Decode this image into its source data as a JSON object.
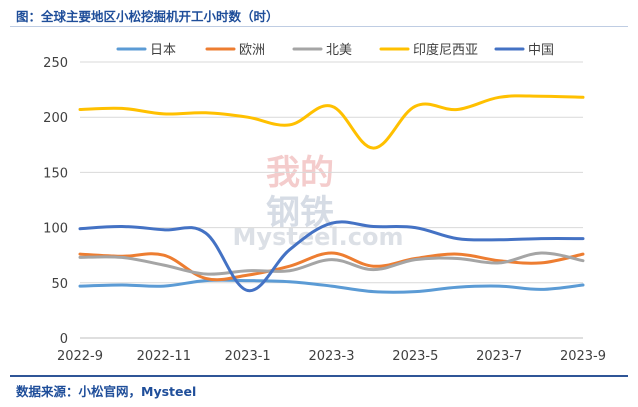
{
  "header": {
    "title": "图：全球主要地区小松挖掘机开工小时数（时）"
  },
  "footer": {
    "source": "数据来源：小松官网，Mysteel"
  },
  "watermark": {
    "line1": "我的",
    "line2": "钢铁",
    "brand": "Mysteel.com"
  },
  "chart_data": {
    "type": "line",
    "title": "图：全球主要地区小松挖掘机开工小时数（时）",
    "xlabel": "",
    "ylabel": "",
    "ylim": [
      0,
      250
    ],
    "yticks": [
      0,
      50,
      100,
      150,
      200,
      250
    ],
    "x": [
      "2022-9",
      "2022-10",
      "2022-11",
      "2022-12",
      "2023-1",
      "2023-2",
      "2023-3",
      "2023-4",
      "2023-5",
      "2023-6",
      "2023-7",
      "2023-8",
      "2023-9"
    ],
    "xtick_labels": [
      "2022-9",
      "2022-11",
      "2023-1",
      "2023-3",
      "2023-5",
      "2023-7",
      "2023-9"
    ],
    "grid": "horizontal",
    "legend_position": "top",
    "series": [
      {
        "name": "日本",
        "color": "#5b9bd5",
        "values": [
          47,
          48,
          47,
          52,
          52,
          51,
          47,
          42,
          42,
          46,
          47,
          44,
          48
        ]
      },
      {
        "name": "欧洲",
        "color": "#ed7d31",
        "values": [
          76,
          74,
          75,
          54,
          57,
          65,
          77,
          65,
          72,
          76,
          70,
          68,
          76
        ]
      },
      {
        "name": "北美",
        "color": "#a5a5a5",
        "values": [
          73,
          73,
          66,
          58,
          61,
          61,
          71,
          62,
          71,
          72,
          68,
          77,
          70
        ]
      },
      {
        "name": "印度尼西亚",
        "color": "#ffc000",
        "values": [
          207,
          208,
          203,
          204,
          200,
          193,
          210,
          172,
          210,
          207,
          218,
          219,
          218
        ]
      },
      {
        "name": "中国",
        "color": "#4472c4",
        "values": [
          99,
          101,
          98,
          95,
          43,
          80,
          104,
          101,
          100,
          90,
          89,
          90,
          90
        ]
      }
    ]
  }
}
